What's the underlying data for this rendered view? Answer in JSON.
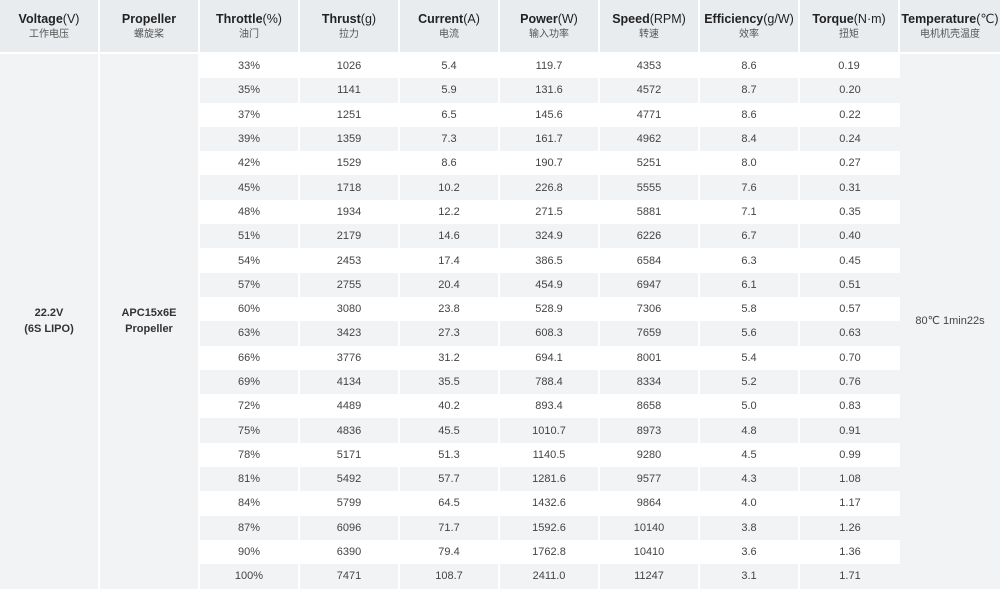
{
  "headers": [
    {
      "en": "Voltage",
      "unit": "(V)",
      "cn": "工作电压"
    },
    {
      "en": "Propeller",
      "unit": "",
      "cn": "螺旋桨"
    },
    {
      "en": "Throttle",
      "unit": "(%)",
      "cn": "油门"
    },
    {
      "en": "Thrust",
      "unit": "(g)",
      "cn": "拉力"
    },
    {
      "en": "Current",
      "unit": "(A)",
      "cn": "电流"
    },
    {
      "en": "Power",
      "unit": "(W)",
      "cn": "输入功率"
    },
    {
      "en": "Speed",
      "unit": "(RPM)",
      "cn": "转速"
    },
    {
      "en": "Efficiency",
      "unit": "(g/W)",
      "cn": "效率"
    },
    {
      "en": "Torque",
      "unit": "(N·m)",
      "cn": "扭矩"
    },
    {
      "en": "Temperature",
      "unit": "(℃)",
      "cn": "电机机壳温度"
    }
  ],
  "voltage": {
    "line1": "22.2V",
    "line2": "(6S LIPO)"
  },
  "propeller": {
    "line1": "APC15x6E",
    "line2": "Propeller"
  },
  "temperature": "80℃  1min22s",
  "rows": [
    [
      "33%",
      "1026",
      "5.4",
      "119.7",
      "4353",
      "8.6",
      "0.19"
    ],
    [
      "35%",
      "1141",
      "5.9",
      "131.6",
      "4572",
      "8.7",
      "0.20"
    ],
    [
      "37%",
      "1251",
      "6.5",
      "145.6",
      "4771",
      "8.6",
      "0.22"
    ],
    [
      "39%",
      "1359",
      "7.3",
      "161.7",
      "4962",
      "8.4",
      "0.24"
    ],
    [
      "42%",
      "1529",
      "8.6",
      "190.7",
      "5251",
      "8.0",
      "0.27"
    ],
    [
      "45%",
      "1718",
      "10.2",
      "226.8",
      "5555",
      "7.6",
      "0.31"
    ],
    [
      "48%",
      "1934",
      "12.2",
      "271.5",
      "5881",
      "7.1",
      "0.35"
    ],
    [
      "51%",
      "2179",
      "14.6",
      "324.9",
      "6226",
      "6.7",
      "0.40"
    ],
    [
      "54%",
      "2453",
      "17.4",
      "386.5",
      "6584",
      "6.3",
      "0.45"
    ],
    [
      "57%",
      "2755",
      "20.4",
      "454.9",
      "6947",
      "6.1",
      "0.51"
    ],
    [
      "60%",
      "3080",
      "23.8",
      "528.9",
      "7306",
      "5.8",
      "0.57"
    ],
    [
      "63%",
      "3423",
      "27.3",
      "608.3",
      "7659",
      "5.6",
      "0.63"
    ],
    [
      "66%",
      "3776",
      "31.2",
      "694.1",
      "8001",
      "5.4",
      "0.70"
    ],
    [
      "69%",
      "4134",
      "35.5",
      "788.4",
      "8334",
      "5.2",
      "0.76"
    ],
    [
      "72%",
      "4489",
      "40.2",
      "893.4",
      "8658",
      "5.0",
      "0.83"
    ],
    [
      "75%",
      "4836",
      "45.5",
      "1010.7",
      "8973",
      "4.8",
      "0.91"
    ],
    [
      "78%",
      "5171",
      "51.3",
      "1140.5",
      "9280",
      "4.5",
      "0.99"
    ],
    [
      "81%",
      "5492",
      "57.7",
      "1281.6",
      "9577",
      "4.3",
      "1.08"
    ],
    [
      "84%",
      "5799",
      "64.5",
      "1432.6",
      "9864",
      "4.0",
      "1.17"
    ],
    [
      "87%",
      "6096",
      "71.7",
      "1592.6",
      "10140",
      "3.8",
      "1.26"
    ],
    [
      "90%",
      "6390",
      "79.4",
      "1762.8",
      "10410",
      "3.6",
      "1.36"
    ],
    [
      "100%",
      "7471",
      "108.7",
      "2411.0",
      "11247",
      "3.1",
      "1.71"
    ]
  ]
}
